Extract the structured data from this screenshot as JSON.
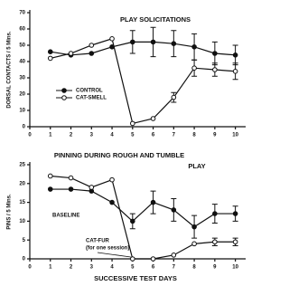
{
  "chart_data": [
    {
      "type": "line",
      "title": "PLAY SOLICITATIONS",
      "ylabel": "DORSAL CONTACTS / 5 Mins.",
      "x": [
        1,
        2,
        3,
        4,
        5,
        6,
        7,
        8,
        9,
        10
      ],
      "xlim": [
        0,
        10.5
      ],
      "xticks": [
        0,
        1,
        2,
        3,
        4,
        5,
        6,
        7,
        8,
        9,
        10
      ],
      "ylim": [
        0,
        70
      ],
      "yticks": [
        0,
        10,
        20,
        30,
        40,
        50,
        60,
        70
      ],
      "legend": true,
      "series": [
        {
          "name": "CONTROL",
          "color": "#111111",
          "marker": "filled",
          "values": [
            46,
            44,
            45,
            49,
            52,
            52,
            51,
            49,
            45,
            44
          ],
          "errors": [
            null,
            null,
            null,
            null,
            7,
            9,
            8,
            8,
            7,
            6
          ]
        },
        {
          "name": "CAT-SMELL",
          "color": "#111111",
          "marker": "open",
          "values": [
            42,
            45,
            50,
            54,
            2,
            5,
            18,
            36,
            35,
            34
          ],
          "errors": [
            null,
            null,
            null,
            null,
            null,
            null,
            3,
            5,
            4,
            5
          ]
        }
      ]
    },
    {
      "type": "line",
      "title_lines": [
        "PINNING DURING ROUGH AND TUMBLE",
        "PLAY"
      ],
      "ylabel": "PINS / 5 Mins.",
      "xlabel": "SUCCESSIVE TEST DAYS",
      "x": [
        1,
        2,
        3,
        4,
        5,
        6,
        7,
        8,
        9,
        10
      ],
      "xlim": [
        0,
        10.5
      ],
      "xticks": [
        0,
        1,
        2,
        3,
        4,
        5,
        6,
        7,
        8,
        9,
        10
      ],
      "ylim": [
        0,
        25
      ],
      "yticks": [
        0,
        5,
        10,
        15,
        20,
        25
      ],
      "legend": false,
      "annotations": [
        "BASELINE",
        "CAT-FUR",
        "(for one session)"
      ],
      "series": [
        {
          "color": "#111111",
          "marker": "filled",
          "values": [
            18.5,
            18.5,
            18,
            15,
            10,
            15,
            13,
            8.5,
            12,
            12
          ],
          "errors": [
            null,
            null,
            null,
            null,
            2,
            3,
            3,
            3,
            2.5,
            2
          ]
        },
        {
          "color": "#111111",
          "marker": "open",
          "values": [
            22,
            21.5,
            19,
            21,
            0,
            0,
            1,
            4,
            4.5,
            4.5
          ],
          "errors": [
            null,
            null,
            null,
            null,
            null,
            null,
            null,
            null,
            1,
            1
          ]
        }
      ]
    }
  ]
}
